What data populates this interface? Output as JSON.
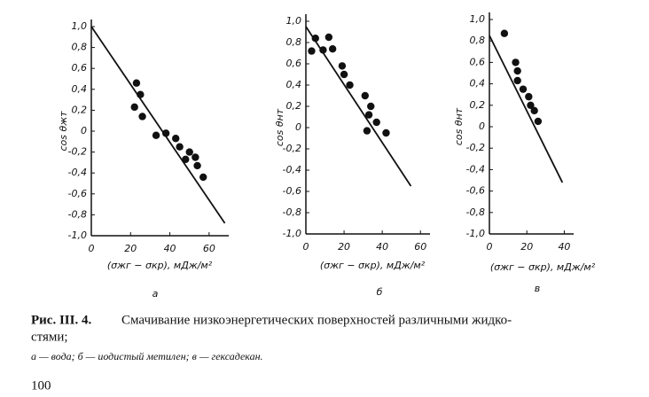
{
  "chart_data": [
    {
      "type": "scatter",
      "panel_label": "а",
      "y_label": "cos θжт",
      "x_label": "(σжг − σкр), мДж/м²",
      "xlim": [
        0,
        70
      ],
      "xticks": [
        0,
        20,
        40,
        60
      ],
      "ylim": [
        -1.0,
        1.0
      ],
      "yticks": [
        {
          "value": 1.0,
          "label": "1,0"
        },
        {
          "value": 0.8,
          "label": "0,8"
        },
        {
          "value": 0.6,
          "label": "0,6"
        },
        {
          "value": 0.4,
          "label": "0,4"
        },
        {
          "value": 0.2,
          "label": "0,2"
        },
        0,
        {
          "value": -0.2,
          "label": "-0,2"
        },
        {
          "value": -0.4,
          "label": "-0,4"
        },
        {
          "value": -0.6,
          "label": "-0,6"
        },
        {
          "value": -0.8,
          "label": "-0,8"
        },
        {
          "value": -1.0,
          "label": "-1,0"
        }
      ],
      "points": {
        "x": [
          23,
          25,
          22,
          26,
          33,
          38,
          43,
          45,
          48,
          50,
          53,
          54,
          57
        ],
        "values": [
          0.46,
          0.35,
          0.23,
          0.14,
          -0.04,
          -0.02,
          -0.07,
          -0.15,
          -0.27,
          -0.2,
          -0.25,
          -0.33,
          -0.44
        ]
      },
      "fit": {
        "x": [
          0,
          68
        ],
        "values": [
          1.0,
          -0.88
        ]
      },
      "color": "#111"
    },
    {
      "type": "scatter",
      "panel_label": "б",
      "y_label": "cos θнт",
      "x_label": "(σжг − σкр), мДж/м²",
      "xlim": [
        0,
        65
      ],
      "xticks": [
        0,
        20,
        40,
        60
      ],
      "ylim": [
        -1.0,
        1.0
      ],
      "yticks": [
        {
          "value": 1.0,
          "label": "1,0"
        },
        {
          "value": 0.8,
          "label": "0,8"
        },
        {
          "value": 0.6,
          "label": "0,6"
        },
        {
          "value": 0.4,
          "label": "0,4"
        },
        {
          "value": 0.2,
          "label": "0,2"
        },
        0,
        {
          "value": -0.2,
          "label": "-0,2"
        },
        {
          "value": -0.4,
          "label": "-0,4"
        },
        {
          "value": -0.6,
          "label": "-0,6"
        },
        {
          "value": -0.8,
          "label": "-0,8"
        },
        {
          "value": -1.0,
          "label": "-1,0"
        }
      ],
      "points": {
        "x": [
          3,
          5,
          9,
          12,
          14,
          19,
          20,
          23,
          31,
          34,
          33,
          32,
          37,
          42
        ],
        "values": [
          0.72,
          0.84,
          0.73,
          0.85,
          0.74,
          0.58,
          0.5,
          0.4,
          0.3,
          0.2,
          0.12,
          -0.03,
          0.05,
          -0.05
        ]
      },
      "fit": {
        "x": [
          0,
          55
        ],
        "values": [
          0.95,
          -0.55
        ]
      },
      "color": "#111"
    },
    {
      "type": "scatter",
      "panel_label": "в",
      "y_label": "cos θнт",
      "x_label": "(σжг − σкр), мДж/м²",
      "xlim": [
        0,
        45
      ],
      "xticks": [
        0,
        20,
        40
      ],
      "ylim": [
        -1.0,
        1.0
      ],
      "yticks": [
        {
          "value": 1.0,
          "label": "1,0"
        },
        {
          "value": 0.8,
          "label": "0,8"
        },
        {
          "value": 0.6,
          "label": "0,6"
        },
        {
          "value": 0.4,
          "label": "0,4"
        },
        {
          "value": 0.2,
          "label": "0,2"
        },
        0,
        {
          "value": -0.2,
          "label": "-0,2"
        },
        {
          "value": -0.4,
          "label": "-0,4"
        },
        {
          "value": -0.6,
          "label": "-0,6"
        },
        {
          "value": -0.8,
          "label": "-0,8"
        },
        {
          "value": -1.0,
          "label": "-1,0"
        }
      ],
      "points": {
        "x": [
          8,
          14,
          15,
          15,
          18,
          21,
          22,
          24,
          26
        ],
        "values": [
          0.87,
          0.6,
          0.52,
          0.43,
          0.35,
          0.28,
          0.2,
          0.15,
          0.05
        ]
      },
      "fit": {
        "x": [
          0,
          39
        ],
        "values": [
          0.85,
          -0.52
        ]
      },
      "color": "#111"
    }
  ],
  "caption": {
    "number": "Рис. III. 4.",
    "line1": "Смачивание низкоэнергетических поверхностей различными жидко-",
    "line2": "стями;",
    "legend": "а — вода; б — иодистый метилен; в — гексадекан."
  },
  "page_number": "100"
}
